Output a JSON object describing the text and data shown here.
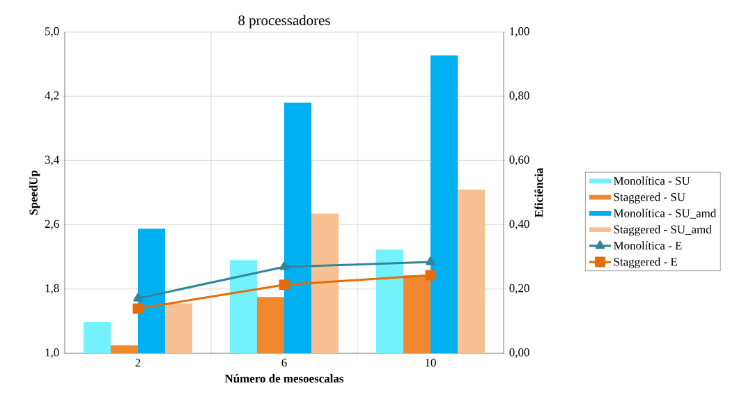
{
  "chart_data": {
    "type": "bar",
    "title": "8 processadores",
    "xlabel": "Número de mesoescalas",
    "ylabel": "SpeedUp",
    "y2label": "Eficiência",
    "categories": [
      "2",
      "6",
      "10"
    ],
    "series": [
      {
        "name": "Monolítica - SU",
        "color": "#73f1fd",
        "values": [
          1.39,
          2.16,
          2.29
        ]
      },
      {
        "name": "Staggered - SU",
        "color": "#f2882e",
        "values": [
          1.1,
          1.7,
          1.97
        ]
      },
      {
        "name": "Monolítica - SU_amd",
        "color": "#00b0f0",
        "values": [
          2.55,
          4.12,
          4.71
        ]
      },
      {
        "name": "Staggered - SU_amd",
        "color": "#f8c193",
        "values": [
          1.62,
          2.74,
          3.04
        ]
      },
      {
        "name": "Monolítica - E",
        "type": "line",
        "axis": "y2",
        "color": "#31859c",
        "marker": "triangle",
        "line_style": "solid",
        "values": [
          0.171,
          0.269,
          0.284
        ]
      },
      {
        "name": "Staggered - E",
        "type": "line",
        "axis": "y2",
        "color": "#e46c0a",
        "marker": "square",
        "line_style": "solid",
        "values": [
          0.139,
          0.213,
          0.243
        ]
      }
    ],
    "ylim": [
      1.0,
      5.0
    ],
    "yticks": [
      {
        "value": 1.0,
        "label": "1,0"
      },
      {
        "value": 1.8,
        "label": "1,8"
      },
      {
        "value": 2.6,
        "label": "2,6"
      },
      {
        "value": 3.4,
        "label": "3,4"
      },
      {
        "value": 4.2,
        "label": "4,2"
      },
      {
        "value": 5.0,
        "label": "5,0"
      }
    ],
    "y2lim": [
      0.0,
      1.0
    ],
    "y2ticks": [
      {
        "value": 0.0,
        "label": "0,00"
      },
      {
        "value": 0.2,
        "label": "0,20"
      },
      {
        "value": 0.4,
        "label": "0,40"
      },
      {
        "value": 0.6,
        "label": "0,60"
      },
      {
        "value": 0.8,
        "label": "0,80"
      },
      {
        "value": 1.0,
        "label": "1,00"
      }
    ],
    "grid": true,
    "legend": "right"
  }
}
